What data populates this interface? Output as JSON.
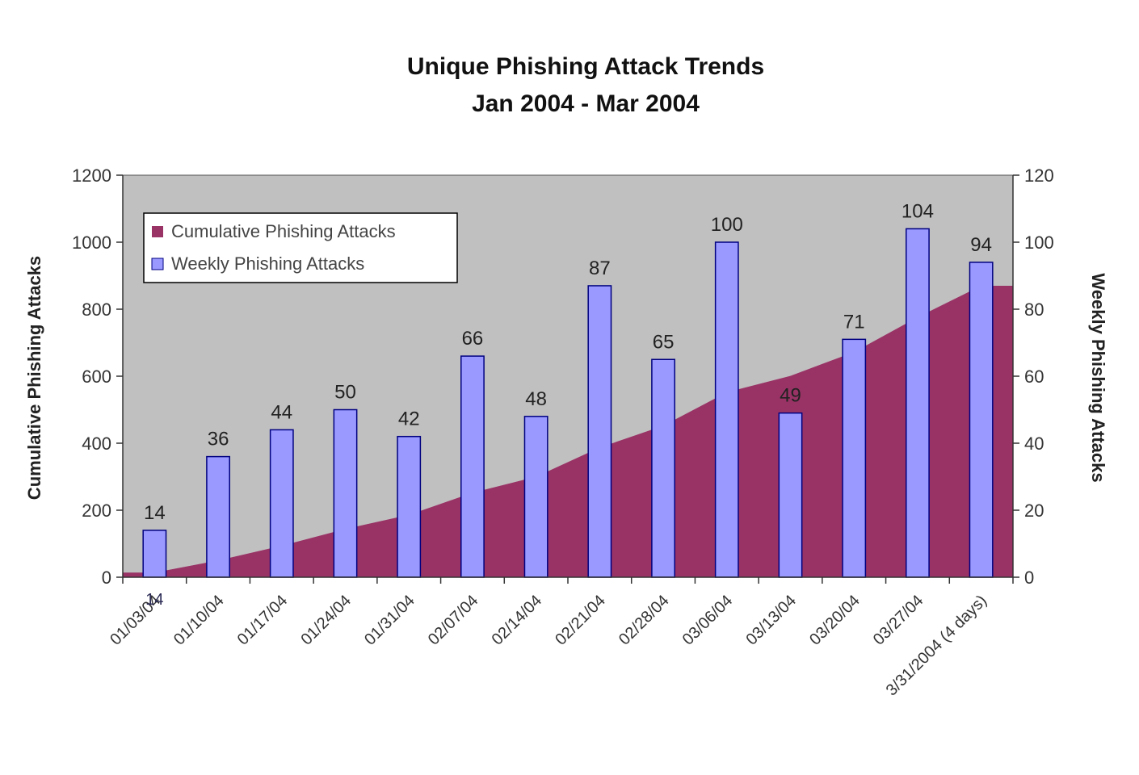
{
  "colors": {
    "plot_background": "#c0c0c0",
    "cumulative_area": "#993366",
    "weekly_bars": "#9999ff",
    "bar_outline": "#000080"
  },
  "chart_data": {
    "type": "bar",
    "title": "Unique Phishing Attack Trends",
    "subtitle": "Jan 2004 - Mar 2004",
    "ylabel_left": "Cumulative Phishing Attacks",
    "ylabel_right": "Weekly Phishing Attacks",
    "ylim_left": [
      0,
      1200
    ],
    "ylim_right": [
      0,
      120
    ],
    "yticks_left": [
      "0",
      "200",
      "400",
      "600",
      "800",
      "1000",
      "1200"
    ],
    "yticks_right": [
      "0",
      "20",
      "40",
      "60",
      "80",
      "100",
      "120"
    ],
    "legend_position": "top-left",
    "grid": false,
    "categories": [
      "01/03/04",
      "01/10/04",
      "01/17/04",
      "01/24/04",
      "01/31/04",
      "02/07/04",
      "02/14/04",
      "02/21/04",
      "02/28/04",
      "03/06/04",
      "03/13/04",
      "03/20/04",
      "03/27/04",
      "3/31/2004 (4 days)"
    ],
    "series": [
      {
        "name": "Cumulative Phishing Attacks",
        "type": "area",
        "axis": "left",
        "values": [
          14,
          50,
          94,
          144,
          186,
          252,
          300,
          387,
          452,
          552,
          601,
          672,
          776,
          870
        ],
        "labels": [
          "14",
          "",
          "",
          "",
          "",
          "",
          "",
          "",
          "",
          "",
          "",
          "",
          "",
          ""
        ]
      },
      {
        "name": "Weekly Phishing Attacks",
        "type": "bar",
        "axis": "right",
        "values": [
          14,
          36,
          44,
          50,
          42,
          66,
          48,
          87,
          65,
          100,
          49,
          71,
          104,
          94
        ],
        "labels": [
          "14",
          "36",
          "44",
          "50",
          "42",
          "66",
          "48",
          "87",
          "65",
          "100",
          "49",
          "71",
          "104",
          "94"
        ]
      }
    ]
  }
}
